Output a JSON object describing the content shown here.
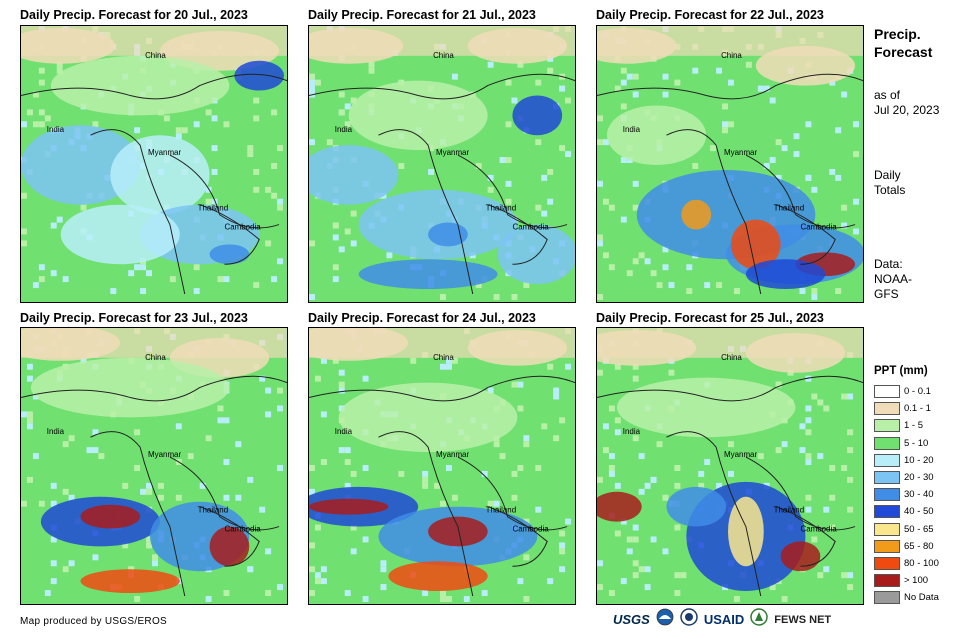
{
  "panels": [
    {
      "title": "Daily Precip. Forecast for 20 Jul., 2023",
      "labels": {
        "china": "China",
        "india": "India",
        "myanmar": "Myanmar",
        "thailand": "Thailand",
        "cambodia": "Cambodia"
      }
    },
    {
      "title": "Daily Precip. Forecast for 21 Jul., 2023",
      "labels": {
        "china": "China",
        "india": "India",
        "myanmar": "Myanmar",
        "thailand": "Thailand",
        "cambodia": "Cambodia"
      }
    },
    {
      "title": "Daily Precip. Forecast for 22 Jul., 2023",
      "labels": {
        "china": "China",
        "india": "India",
        "myanmar": "Myanmar",
        "thailand": "Thailand",
        "cambodia": "Cambodia"
      }
    },
    {
      "title": "Daily Precip. Forecast for 23 Jul., 2023",
      "labels": {
        "china": "China",
        "india": "India",
        "myanmar": "Myanmar",
        "thailand": "Thailand",
        "cambodia": "Cambodia"
      }
    },
    {
      "title": "Daily Precip. Forecast for 24 Jul., 2023",
      "labels": {
        "china": "China",
        "india": "India",
        "myanmar": "Myanmar",
        "thailand": "Thailand",
        "cambodia": "Cambodia"
      }
    },
    {
      "title": "Daily Precip. Forecast for 25 Jul., 2023",
      "labels": {
        "china": "China",
        "india": "India",
        "myanmar": "Myanmar",
        "thailand": "Thailand",
        "cambodia": "Cambodia"
      }
    }
  ],
  "sidebar": {
    "title_line1": "Precip.",
    "title_line2": "Forecast",
    "asof_line1": "as of",
    "asof_line2": "Jul 20, 2023",
    "daily_line1": "Daily",
    "daily_line2": "Totals",
    "data_line1": "Data:",
    "data_line2": "NOAA-",
    "data_line3": "GFS"
  },
  "legend": {
    "title": "PPT (mm)",
    "items": [
      {
        "label": "0 - 0.1",
        "color": "#ffffff"
      },
      {
        "label": "0.1 - 1",
        "color": "#f0dcb8"
      },
      {
        "label": "1 - 5",
        "color": "#b8f0a8"
      },
      {
        "label": "5 - 10",
        "color": "#70e070"
      },
      {
        "label": "10 - 20",
        "color": "#b8eefa"
      },
      {
        "label": "20 - 30",
        "color": "#7cc4f4"
      },
      {
        "label": "30 - 40",
        "color": "#3f8de6"
      },
      {
        "label": "40 - 50",
        "color": "#1f49d6"
      },
      {
        "label": "50 - 65",
        "color": "#fae68c"
      },
      {
        "label": "65 - 80",
        "color": "#f29a1a"
      },
      {
        "label": "80 - 100",
        "color": "#f04a10"
      },
      {
        "label": "> 100",
        "color": "#a81c1c"
      },
      {
        "label": "No Data",
        "color": "#9a9a9a"
      }
    ]
  },
  "footer": {
    "credit": "Map produced by USGS/EROS",
    "logo_usgs": "USGS",
    "logo_usaid": "USAID",
    "logo_fews": "FEWS NET"
  }
}
